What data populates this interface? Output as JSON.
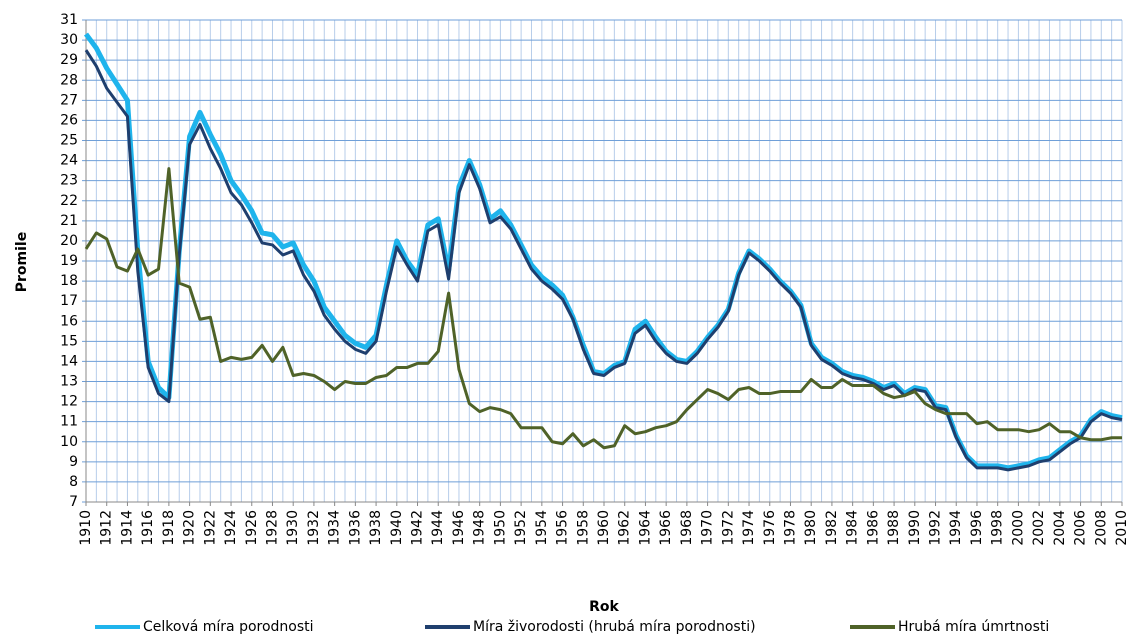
{
  "chart_data": {
    "type": "line",
    "x": [
      1910,
      1911,
      1912,
      1913,
      1914,
      1915,
      1916,
      1917,
      1918,
      1919,
      1920,
      1921,
      1922,
      1923,
      1924,
      1925,
      1926,
      1927,
      1928,
      1929,
      1930,
      1931,
      1932,
      1933,
      1934,
      1935,
      1936,
      1937,
      1938,
      1939,
      1940,
      1941,
      1942,
      1943,
      1944,
      1945,
      1946,
      1947,
      1948,
      1949,
      1950,
      1951,
      1952,
      1953,
      1954,
      1955,
      1956,
      1957,
      1958,
      1959,
      1960,
      1961,
      1962,
      1963,
      1964,
      1965,
      1966,
      1967,
      1968,
      1969,
      1970,
      1971,
      1972,
      1973,
      1974,
      1975,
      1976,
      1977,
      1978,
      1979,
      1980,
      1981,
      1982,
      1983,
      1984,
      1985,
      1986,
      1987,
      1988,
      1989,
      1990,
      1991,
      1992,
      1993,
      1994,
      1995,
      1996,
      1997,
      1998,
      1999,
      2000,
      2001,
      2002,
      2003,
      2004,
      2005,
      2006,
      2007,
      2008,
      2009,
      2010
    ],
    "xlabel": "Rok",
    "ylabel": "Promile",
    "xlim": [
      1910,
      2010
    ],
    "xticks": [
      1910,
      1912,
      1914,
      1916,
      1918,
      1920,
      1922,
      1924,
      1926,
      1928,
      1930,
      1932,
      1934,
      1936,
      1938,
      1940,
      1942,
      1944,
      1946,
      1948,
      1950,
      1952,
      1954,
      1956,
      1958,
      1960,
      1962,
      1964,
      1966,
      1968,
      1970,
      1972,
      1974,
      1976,
      1978,
      1980,
      1982,
      1984,
      1986,
      1988,
      1990,
      1992,
      1994,
      1996,
      1998,
      2000,
      2002,
      2004,
      2006,
      2008,
      2010
    ],
    "ylim": [
      7,
      31
    ],
    "yticks": [
      7,
      8,
      9,
      10,
      11,
      12,
      13,
      14,
      15,
      16,
      17,
      18,
      19,
      20,
      21,
      22,
      23,
      24,
      25,
      26,
      27,
      28,
      29,
      30,
      31
    ],
    "grid": true,
    "legend": "bottom",
    "series": [
      {
        "name": "Celková míra porodnosti",
        "color": "#1fb4ec",
        "values": [
          30.3,
          29.6,
          28.6,
          27.8,
          27.0,
          19.5,
          14.0,
          12.7,
          12.2,
          19.5,
          25.2,
          26.4,
          25.3,
          24.3,
          23.0,
          22.3,
          21.5,
          20.4,
          20.3,
          19.7,
          19.9,
          18.8,
          18.0,
          16.7,
          16.0,
          15.3,
          14.9,
          14.7,
          15.3,
          17.8,
          20.0,
          19.0,
          18.3,
          20.8,
          21.1,
          18.5,
          22.7,
          24.0,
          22.8,
          21.1,
          21.5,
          20.8,
          19.8,
          18.8,
          18.2,
          17.8,
          17.3,
          16.2,
          14.8,
          13.5,
          13.4,
          13.8,
          14.0,
          15.6,
          16.0,
          15.2,
          14.5,
          14.1,
          14.0,
          14.5,
          15.2,
          15.8,
          16.6,
          18.4,
          19.5,
          19.1,
          18.6,
          18.0,
          17.5,
          16.8,
          14.9,
          14.2,
          13.9,
          13.5,
          13.3,
          13.2,
          13.0,
          12.7,
          12.9,
          12.4,
          12.7,
          12.6,
          11.8,
          11.7,
          10.3,
          9.3,
          8.8,
          8.8,
          8.8,
          8.7,
          8.8,
          8.9,
          9.1,
          9.2,
          9.6,
          10.0,
          10.3,
          11.1,
          11.5,
          11.3,
          11.2
        ]
      },
      {
        "name": "Míra živorodosti (hrubá míra porodnosti)",
        "color": "#1f3f6e",
        "values": [
          29.5,
          28.7,
          27.6,
          26.9,
          26.2,
          18.5,
          13.7,
          12.4,
          12.0,
          19.3,
          24.8,
          25.8,
          24.6,
          23.6,
          22.4,
          21.8,
          20.9,
          19.9,
          19.8,
          19.3,
          19.5,
          18.3,
          17.5,
          16.3,
          15.6,
          15.0,
          14.6,
          14.4,
          15.0,
          17.5,
          19.7,
          18.8,
          18.0,
          20.5,
          20.8,
          18.1,
          22.4,
          23.8,
          22.6,
          20.9,
          21.2,
          20.6,
          19.6,
          18.6,
          18.0,
          17.6,
          17.1,
          16.1,
          14.6,
          13.4,
          13.3,
          13.7,
          13.9,
          15.4,
          15.8,
          15.0,
          14.4,
          14.0,
          13.9,
          14.4,
          15.1,
          15.7,
          16.5,
          18.3,
          19.4,
          19.0,
          18.5,
          17.9,
          17.4,
          16.7,
          14.8,
          14.1,
          13.8,
          13.4,
          13.2,
          13.1,
          12.9,
          12.6,
          12.8,
          12.3,
          12.6,
          12.5,
          11.7,
          11.6,
          10.2,
          9.2,
          8.7,
          8.7,
          8.7,
          8.6,
          8.7,
          8.8,
          9.0,
          9.1,
          9.5,
          9.9,
          10.2,
          11.0,
          11.4,
          11.2,
          11.1
        ]
      },
      {
        "name": "Hrubá míra úmrtnosti",
        "color": "#4f6228",
        "values": [
          19.6,
          20.4,
          20.1,
          18.7,
          18.5,
          19.6,
          18.3,
          18.6,
          23.6,
          17.9,
          17.7,
          16.1,
          16.2,
          14.0,
          14.2,
          14.1,
          14.2,
          14.8,
          14.0,
          14.7,
          13.3,
          13.4,
          13.3,
          13.0,
          12.6,
          13.0,
          12.9,
          12.9,
          13.2,
          13.3,
          13.7,
          13.7,
          13.9,
          13.9,
          14.5,
          17.4,
          13.6,
          11.9,
          11.5,
          11.7,
          11.6,
          11.4,
          10.7,
          10.7,
          10.7,
          10.0,
          9.9,
          10.4,
          9.8,
          10.1,
          9.7,
          9.8,
          10.8,
          10.4,
          10.5,
          10.7,
          10.8,
          11.0,
          11.6,
          12.1,
          12.6,
          12.4,
          12.1,
          12.6,
          12.7,
          12.4,
          12.4,
          12.5,
          12.5,
          12.5,
          13.1,
          12.7,
          12.7,
          13.1,
          12.8,
          12.8,
          12.8,
          12.4,
          12.2,
          12.3,
          12.5,
          11.9,
          11.6,
          11.4,
          11.4,
          11.4,
          10.9,
          11.0,
          10.6,
          10.6,
          10.6,
          10.5,
          10.6,
          10.9,
          10.5,
          10.5,
          10.2,
          10.1,
          10.1,
          10.2,
          10.2
        ]
      }
    ]
  }
}
